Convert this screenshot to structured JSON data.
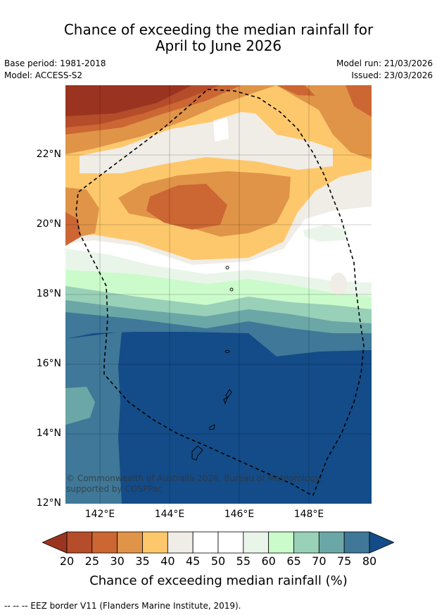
{
  "title_line1": "Chance of exceeding the median rainfall for",
  "title_line2": "April to June 2026",
  "base_period": "Base period: 1981-2018",
  "model": "Model: ACCESS-S2",
  "model_run": "Model run: 21/03/2026",
  "issued": "Issued: 23/03/2026",
  "y_ticks": [
    "22°N",
    "20°N",
    "18°N",
    "16°N",
    "14°N",
    "12°N"
  ],
  "x_ticks": [
    "142°E",
    "144°E",
    "146°E",
    "148°E"
  ],
  "copyright": "© Commonwealth of Australia 2026, Bureau of Meteorology, supported by COSPPac",
  "colorbar": {
    "label": "Chance of exceeding median rainfall (%)",
    "ticks": [
      "20",
      "25",
      "30",
      "35",
      "40",
      "45",
      "50",
      "55",
      "60",
      "65",
      "70",
      "75",
      "80"
    ],
    "colors": [
      "#9a3420",
      "#b54c2a",
      "#cc6633",
      "#e09448",
      "#fdc86c",
      "#f0ece6",
      "#ffffff",
      "#ffffff",
      "#eaf5ea",
      "#cbfbcb",
      "#99d0b8",
      "#6ca7a7",
      "#3f7898",
      "#134c88"
    ]
  },
  "footnote": "--  --  -- EEZ border V11 (Flanders Marine Institute, 2019)."
}
